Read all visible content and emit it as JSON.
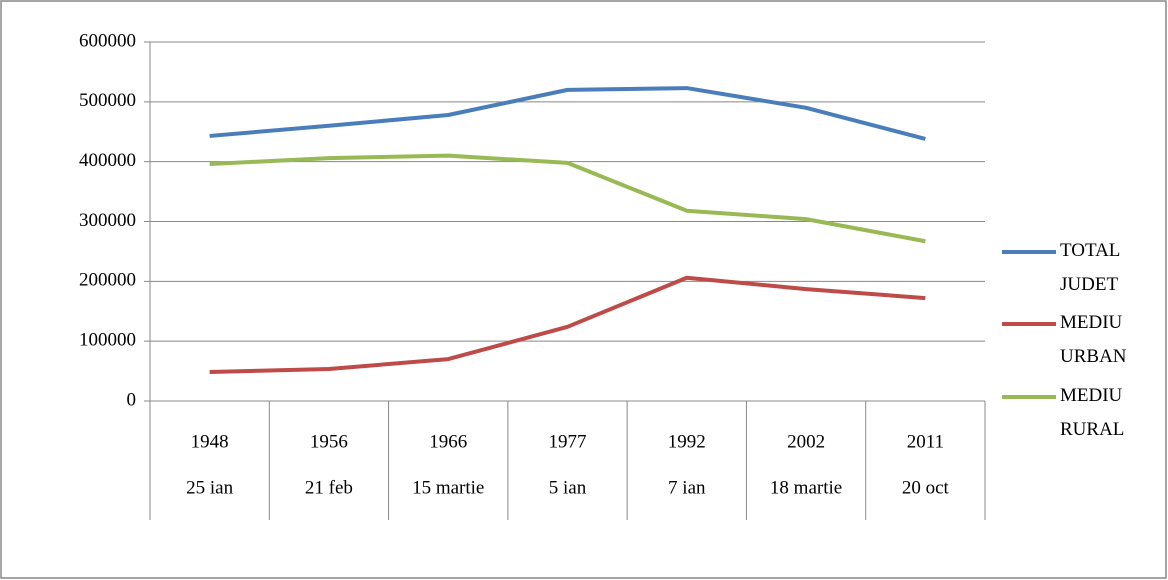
{
  "chart_data": {
    "type": "line",
    "categories": [
      "1948",
      "1956",
      "1966",
      "1977",
      "1992",
      "2002",
      "2011"
    ],
    "category_dates": [
      "25 ian",
      "21 feb",
      "15 martie",
      "5 ian",
      "7 ian",
      "18 martie",
      "20 oct"
    ],
    "series": [
      {
        "name": "TOTAL JUDET",
        "color": "#4a7ebb",
        "values": [
          443000,
          460000,
          478000,
          520000,
          523000,
          490000,
          438000
        ]
      },
      {
        "name": "MEDIU URBAN",
        "color": "#be4b48",
        "values": [
          48500,
          53500,
          70000,
          124000,
          206000,
          187000,
          172000
        ]
      },
      {
        "name": "MEDIU RURAL",
        "color": "#98b954",
        "values": [
          396000,
          406000,
          410000,
          398000,
          318000,
          304000,
          267000
        ]
      }
    ],
    "ylim": [
      0,
      600000
    ],
    "yticks": [
      0,
      100000,
      200000,
      300000,
      400000,
      500000,
      600000
    ],
    "grid": true,
    "legend": "right"
  }
}
